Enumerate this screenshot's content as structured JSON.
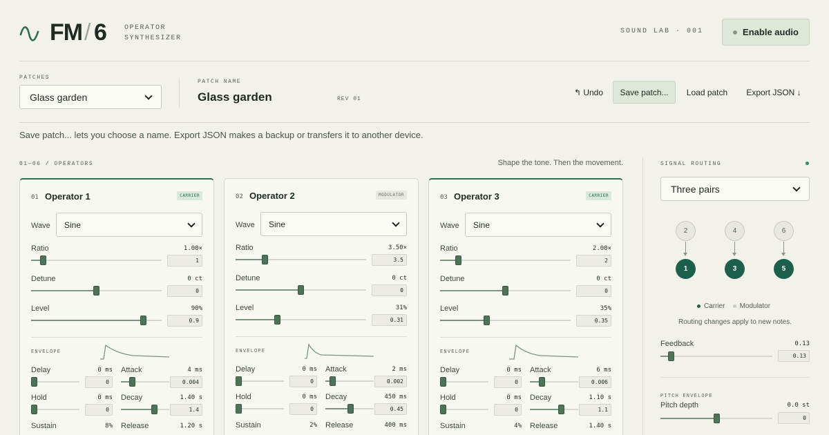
{
  "header": {
    "logo_fm": "FM",
    "logo_slash": "/",
    "logo_six": "6",
    "subtitle_1": "OPERATOR",
    "subtitle_2": "SYNTHESIZER",
    "lab": "SOUND LAB · 001",
    "audio_button": "Enable audio"
  },
  "patch_bar": {
    "patches_label": "PATCHES",
    "patch_selected": "Glass garden",
    "name_label": "PATCH NAME",
    "patch_name": "Glass garden",
    "revision": "REV 01",
    "undo": "↰ Undo",
    "save": "Save patch...",
    "load": "Load patch",
    "export": "Export JSON ↓"
  },
  "hint": "Save patch... lets you choose a name. Export JSON makes a backup or transfers it to another device.",
  "operators_section": {
    "title": "01—06 / OPERATORS",
    "tagline": "Shape the tone. Then the movement."
  },
  "operators": [
    {
      "num": "01",
      "title": "Operator 1",
      "role": "CARRIER",
      "wave_label": "Wave",
      "wave": "Sine",
      "ratio": {
        "label": "Ratio",
        "display": "1.00×",
        "input": "1",
        "fraction": 0.07
      },
      "detune": {
        "label": "Detune",
        "display": "0 ct",
        "input": "0",
        "fraction": 0.5
      },
      "level": {
        "label": "Level",
        "display": "90%",
        "input": "0.9",
        "fraction": 0.88
      },
      "envelope_label": "ENVELOPE",
      "delay": {
        "label": "Delay",
        "display": "0 ms",
        "input": "0",
        "fraction": 0.0
      },
      "attack": {
        "label": "Attack",
        "display": "4 ms",
        "input": "0.004",
        "fraction": 0.2
      },
      "hold": {
        "label": "Hold",
        "display": "0 ms",
        "input": "0",
        "fraction": 0.0
      },
      "decay": {
        "label": "Decay",
        "display": "1.40 s",
        "input": "1.4",
        "fraction": 0.72
      },
      "sustain": {
        "label": "Sustain",
        "display": "8%"
      },
      "release": {
        "label": "Release",
        "display": "1.20 s"
      }
    },
    {
      "num": "02",
      "title": "Operator 2",
      "role": "MODULATOR",
      "wave_label": "Wave",
      "wave": "Sine",
      "ratio": {
        "label": "Ratio",
        "display": "3.50×",
        "input": "3.5",
        "fraction": 0.21
      },
      "detune": {
        "label": "Detune",
        "display": "0 ct",
        "input": "0",
        "fraction": 0.5
      },
      "level": {
        "label": "Level",
        "display": "31%",
        "input": "0.31",
        "fraction": 0.31
      },
      "envelope_label": "ENVELOPE",
      "delay": {
        "label": "Delay",
        "display": "0 ms",
        "input": "0",
        "fraction": 0.0
      },
      "attack": {
        "label": "Attack",
        "display": "2 ms",
        "input": "0.002",
        "fraction": 0.1
      },
      "hold": {
        "label": "Hold",
        "display": "0 ms",
        "input": "0",
        "fraction": 0.0
      },
      "decay": {
        "label": "Decay",
        "display": "450 ms",
        "input": "0.45",
        "fraction": 0.52
      },
      "sustain": {
        "label": "Sustain",
        "display": "2%"
      },
      "release": {
        "label": "Release",
        "display": "400 ms"
      }
    },
    {
      "num": "03",
      "title": "Operator 3",
      "role": "CARRIER",
      "wave_label": "Wave",
      "wave": "Sine",
      "ratio": {
        "label": "Ratio",
        "display": "2.00×",
        "input": "2",
        "fraction": 0.12
      },
      "detune": {
        "label": "Detune",
        "display": "0 ct",
        "input": "0",
        "fraction": 0.5
      },
      "level": {
        "label": "Level",
        "display": "35%",
        "input": "0.35",
        "fraction": 0.35
      },
      "envelope_label": "ENVELOPE",
      "delay": {
        "label": "Delay",
        "display": "0 ms",
        "input": "0",
        "fraction": 0.0
      },
      "attack": {
        "label": "Attack",
        "display": "6 ms",
        "input": "0.006",
        "fraction": 0.22
      },
      "hold": {
        "label": "Hold",
        "display": "0 ms",
        "input": "0",
        "fraction": 0.0
      },
      "decay": {
        "label": "Decay",
        "display": "1.10 s",
        "input": "1.1",
        "fraction": 0.68
      },
      "sustain": {
        "label": "Sustain",
        "display": "4%"
      },
      "release": {
        "label": "Release",
        "display": "1.40 s"
      }
    }
  ],
  "routing": {
    "title": "SIGNAL ROUTING",
    "selected": "Three pairs",
    "modulators": [
      "2",
      "4",
      "6"
    ],
    "carriers": [
      "1",
      "3",
      "5"
    ],
    "legend_carrier": "Carrier",
    "legend_modulator": "Modulator",
    "note": "Routing changes apply to new notes.",
    "feedback": {
      "label": "Feedback",
      "display": "0.13",
      "input": "0.13",
      "fraction": 0.07
    },
    "pitch_env_label": "PITCH ENVELOPE",
    "pitch_depth": {
      "label": "Pitch depth",
      "display": "0.0 st",
      "input": "0",
      "fraction": 0.5
    }
  },
  "colors": {
    "accent": "#1c5f4c",
    "carrier": "#2d6a4f",
    "modulator": "#c9cbc0",
    "slider": "#4d7359",
    "background": "#f3f2ea"
  }
}
